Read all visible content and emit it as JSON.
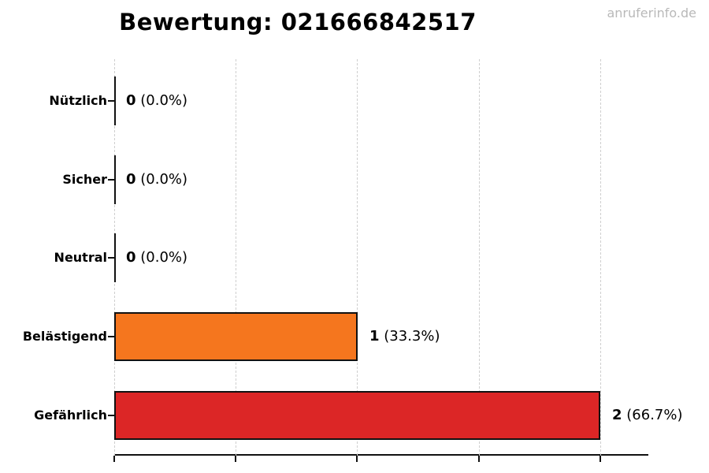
{
  "chart_data": {
    "type": "bar",
    "orientation": "horizontal",
    "title": "Bewertung: 021666842517",
    "watermark": "anruferinfo.de",
    "categories": [
      "Nützlich",
      "Sicher",
      "Neutral",
      "Belästigend",
      "Gefährlich"
    ],
    "values": [
      0,
      0,
      0,
      1,
      2
    ],
    "value_labels": [
      "0 (0.0%)",
      "0 (0.0%)",
      "0 (0.0%)",
      "1 (33.3%)",
      "2 (66.7%)"
    ],
    "xlim": [
      0,
      2.2
    ],
    "x_gridlines": [
      0,
      0.5,
      1.0,
      1.5,
      2.0
    ],
    "x_tick_labels_visible": false,
    "grid": "vertical-dashed",
    "legend_position": "none",
    "colors": {
      "belaestigend_bar": "#f5761e",
      "gefaehrlich_bar": "#dc2626",
      "bar_edge": "#111111",
      "gridline": "#cfcfcf",
      "watermark_text": "#b9b9b9",
      "text": "#000000"
    }
  },
  "rows": [
    {
      "label": "Nützlich",
      "count": "0",
      "percent": "(0.0%)",
      "value": 0,
      "color": "#111111"
    },
    {
      "label": "Sicher",
      "count": "0",
      "percent": "(0.0%)",
      "value": 0,
      "color": "#111111"
    },
    {
      "label": "Neutral",
      "count": "0",
      "percent": "(0.0%)",
      "value": 0,
      "color": "#111111"
    },
    {
      "label": "Belästigend",
      "count": "1",
      "percent": "(33.3%)",
      "value": 1,
      "color": "#f5761e"
    },
    {
      "label": "Gefährlich",
      "count": "2",
      "percent": "(66.7%)",
      "value": 2,
      "color": "#dc2626"
    }
  ]
}
